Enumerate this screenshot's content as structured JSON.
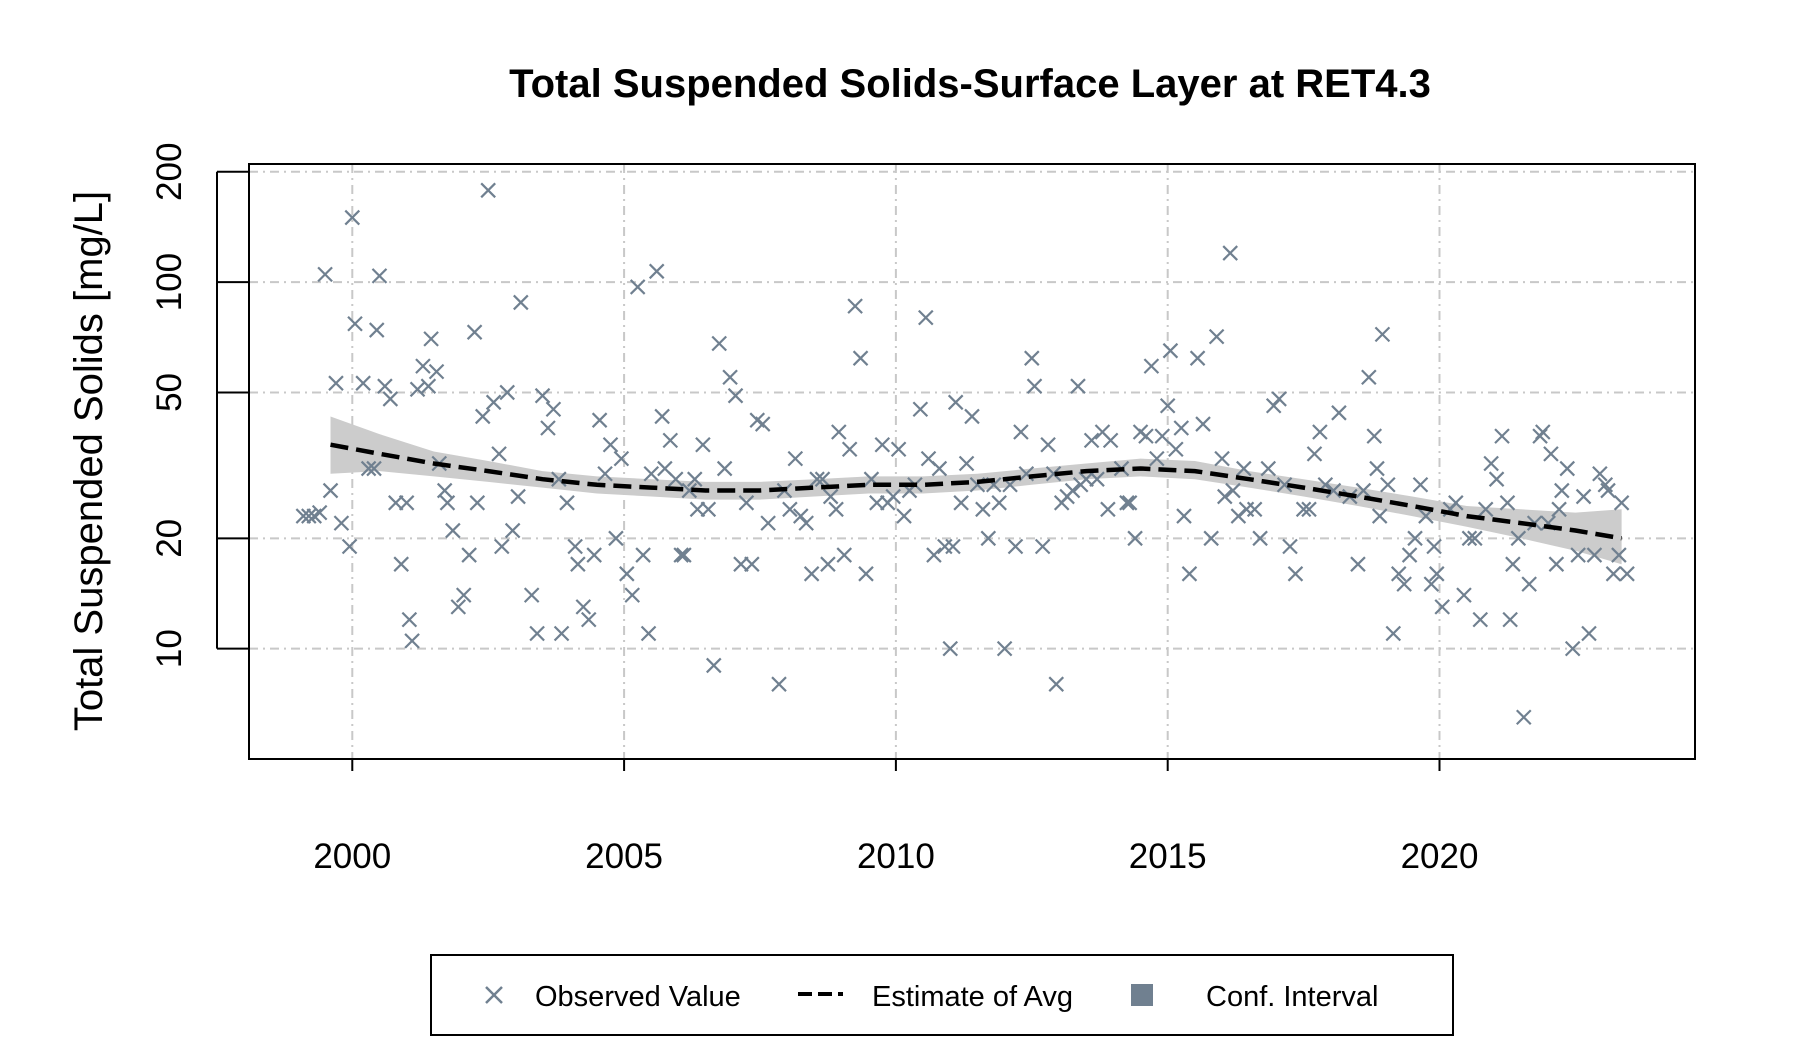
{
  "chart_data": {
    "type": "scatter",
    "title": "Total Suspended Solids-Surface Layer at RET4.3",
    "xlabel": "",
    "ylabel": "Total Suspended Solids [mg/L]",
    "y_scale": "log",
    "xlim": [
      1998.1,
      2024.7
    ],
    "ylim": [
      5,
      210
    ],
    "x_ticks": [
      2000,
      2005,
      2010,
      2015,
      2020
    ],
    "x_tick_labels": [
      "2000",
      "2005",
      "2010",
      "2015",
      "2020"
    ],
    "y_ticks": [
      10,
      20,
      50,
      100,
      200
    ],
    "y_tick_labels": [
      "10",
      "20",
      "50",
      "100",
      "200"
    ],
    "grid": true,
    "legend_position": "bottom",
    "colors": {
      "observed": "#708090",
      "estimate": "#000000",
      "confidence_band": "#cccccc",
      "confidence_legend": "#708090",
      "grid": "#c8c8c8"
    },
    "legend": [
      {
        "label": "Observed Value",
        "symbol": "x-marker"
      },
      {
        "label": "Estimate of Avg",
        "symbol": "dashed-line"
      },
      {
        "label": "Conf. Interval",
        "symbol": "filled-square"
      }
    ],
    "series": [
      {
        "name": "Observed Value",
        "type": "scatter",
        "points": [
          [
            1999.1,
            23
          ],
          [
            1999.2,
            23
          ],
          [
            1999.3,
            23
          ],
          [
            1999.4,
            23.5
          ],
          [
            1999.5,
            105
          ],
          [
            1999.6,
            27
          ],
          [
            1999.7,
            53
          ],
          [
            1999.8,
            22
          ],
          [
            1999.95,
            19
          ],
          [
            2000.0,
            150
          ],
          [
            2000.05,
            77
          ],
          [
            2000.2,
            53
          ],
          [
            2000.3,
            31
          ],
          [
            2000.4,
            31
          ],
          [
            2000.45,
            74
          ],
          [
            2000.5,
            104
          ],
          [
            2000.6,
            52
          ],
          [
            2000.7,
            48
          ],
          [
            2000.8,
            25
          ],
          [
            2000.9,
            17
          ],
          [
            2001.0,
            25
          ],
          [
            2001.05,
            12
          ],
          [
            2001.1,
            10.5
          ],
          [
            2001.2,
            51
          ],
          [
            2001.3,
            59
          ],
          [
            2001.4,
            52
          ],
          [
            2001.45,
            70
          ],
          [
            2001.55,
            57
          ],
          [
            2001.6,
            32
          ],
          [
            2001.7,
            27
          ],
          [
            2001.75,
            25
          ],
          [
            2001.85,
            21
          ],
          [
            2001.95,
            13
          ],
          [
            2002.05,
            14
          ],
          [
            2002.15,
            18
          ],
          [
            2002.25,
            73
          ],
          [
            2002.3,
            25
          ],
          [
            2002.4,
            43
          ],
          [
            2002.5,
            178
          ],
          [
            2002.6,
            47
          ],
          [
            2002.7,
            34
          ],
          [
            2002.75,
            19
          ],
          [
            2002.85,
            50
          ],
          [
            2002.95,
            21
          ],
          [
            2003.05,
            26
          ],
          [
            2003.1,
            88
          ],
          [
            2003.3,
            14
          ],
          [
            2003.4,
            11
          ],
          [
            2003.5,
            49
          ],
          [
            2003.6,
            40
          ],
          [
            2003.7,
            45
          ],
          [
            2003.8,
            29
          ],
          [
            2003.85,
            11
          ],
          [
            2003.95,
            25
          ],
          [
            2004.1,
            19
          ],
          [
            2004.15,
            17
          ],
          [
            2004.25,
            13
          ],
          [
            2004.35,
            12
          ],
          [
            2004.45,
            18
          ],
          [
            2004.55,
            42
          ],
          [
            2004.65,
            30
          ],
          [
            2004.75,
            36
          ],
          [
            2004.85,
            20
          ],
          [
            2004.95,
            33
          ],
          [
            2005.05,
            16
          ],
          [
            2005.15,
            14
          ],
          [
            2005.25,
            97
          ],
          [
            2005.35,
            18
          ],
          [
            2005.45,
            11
          ],
          [
            2005.5,
            30
          ],
          [
            2005.6,
            107
          ],
          [
            2005.7,
            43
          ],
          [
            2005.75,
            31
          ],
          [
            2005.85,
            37
          ],
          [
            2005.95,
            29
          ],
          [
            2006.05,
            18
          ],
          [
            2006.1,
            18
          ],
          [
            2006.2,
            27
          ],
          [
            2006.3,
            29
          ],
          [
            2006.35,
            24
          ],
          [
            2006.45,
            36
          ],
          [
            2006.55,
            24
          ],
          [
            2006.65,
            9
          ],
          [
            2006.75,
            68
          ],
          [
            2006.85,
            31
          ],
          [
            2006.95,
            55
          ],
          [
            2007.05,
            49
          ],
          [
            2007.15,
            17
          ],
          [
            2007.25,
            25
          ],
          [
            2007.35,
            17
          ],
          [
            2007.45,
            42
          ],
          [
            2007.55,
            41
          ],
          [
            2007.65,
            22
          ],
          [
            2007.85,
            8
          ],
          [
            2007.95,
            27
          ],
          [
            2008.05,
            24
          ],
          [
            2008.15,
            33
          ],
          [
            2008.25,
            23
          ],
          [
            2008.35,
            22
          ],
          [
            2008.45,
            16
          ],
          [
            2008.55,
            29
          ],
          [
            2008.65,
            29
          ],
          [
            2008.75,
            17
          ],
          [
            2008.8,
            26
          ],
          [
            2008.9,
            24
          ],
          [
            2008.95,
            39
          ],
          [
            2009.05,
            18
          ],
          [
            2009.15,
            35
          ],
          [
            2009.25,
            86
          ],
          [
            2009.35,
            62
          ],
          [
            2009.45,
            16
          ],
          [
            2009.55,
            29
          ],
          [
            2009.65,
            25
          ],
          [
            2009.75,
            36
          ],
          [
            2009.85,
            25
          ],
          [
            2009.95,
            26
          ],
          [
            2010.05,
            35
          ],
          [
            2010.15,
            23
          ],
          [
            2010.25,
            27
          ],
          [
            2010.35,
            28
          ],
          [
            2010.45,
            45
          ],
          [
            2010.55,
            80
          ],
          [
            2010.6,
            33
          ],
          [
            2010.7,
            18
          ],
          [
            2010.8,
            31
          ],
          [
            2010.9,
            19
          ],
          [
            2011.0,
            10
          ],
          [
            2011.05,
            19
          ],
          [
            2011.1,
            47
          ],
          [
            2011.2,
            25
          ],
          [
            2011.3,
            32
          ],
          [
            2011.4,
            43
          ],
          [
            2011.5,
            28
          ],
          [
            2011.6,
            24
          ],
          [
            2011.7,
            20
          ],
          [
            2011.8,
            28
          ],
          [
            2011.9,
            25
          ],
          [
            2012.0,
            10
          ],
          [
            2012.1,
            28
          ],
          [
            2012.2,
            19
          ],
          [
            2012.3,
            39
          ],
          [
            2012.4,
            30
          ],
          [
            2012.5,
            62
          ],
          [
            2012.55,
            52
          ],
          [
            2012.7,
            19
          ],
          [
            2012.8,
            36
          ],
          [
            2012.9,
            30
          ],
          [
            2012.95,
            8
          ],
          [
            2013.05,
            25
          ],
          [
            2013.15,
            26
          ],
          [
            2013.25,
            27
          ],
          [
            2013.35,
            52
          ],
          [
            2013.4,
            28
          ],
          [
            2013.5,
            29
          ],
          [
            2013.6,
            37
          ],
          [
            2013.7,
            29
          ],
          [
            2013.8,
            39
          ],
          [
            2013.9,
            24
          ],
          [
            2013.95,
            37
          ],
          [
            2014.15,
            31
          ],
          [
            2014.25,
            25
          ],
          [
            2014.3,
            25
          ],
          [
            2014.4,
            20
          ],
          [
            2014.5,
            39
          ],
          [
            2014.6,
            38
          ],
          [
            2014.7,
            59
          ],
          [
            2014.8,
            33
          ],
          [
            2014.9,
            38
          ],
          [
            2015.0,
            46
          ],
          [
            2015.05,
            65
          ],
          [
            2015.15,
            35
          ],
          [
            2015.25,
            40
          ],
          [
            2015.3,
            23
          ],
          [
            2015.4,
            16
          ],
          [
            2015.55,
            62
          ],
          [
            2015.65,
            41
          ],
          [
            2015.8,
            20
          ],
          [
            2015.9,
            71
          ],
          [
            2016.0,
            33
          ],
          [
            2016.05,
            26
          ],
          [
            2016.15,
            120
          ],
          [
            2016.2,
            27
          ],
          [
            2016.3,
            23
          ],
          [
            2016.4,
            31
          ],
          [
            2016.45,
            24
          ],
          [
            2016.6,
            24
          ],
          [
            2016.7,
            20
          ],
          [
            2016.85,
            31
          ],
          [
            2016.95,
            46
          ],
          [
            2017.05,
            48
          ],
          [
            2017.15,
            28
          ],
          [
            2017.25,
            19
          ],
          [
            2017.35,
            16
          ],
          [
            2017.5,
            24
          ],
          [
            2017.6,
            24
          ],
          [
            2017.7,
            34
          ],
          [
            2017.8,
            39
          ],
          [
            2017.9,
            28
          ],
          [
            2018.05,
            27
          ],
          [
            2018.15,
            44
          ],
          [
            2018.35,
            26
          ],
          [
            2018.5,
            17
          ],
          [
            2018.6,
            27
          ],
          [
            2018.7,
            55
          ],
          [
            2018.8,
            38
          ],
          [
            2018.85,
            31
          ],
          [
            2018.9,
            23
          ],
          [
            2018.95,
            72
          ],
          [
            2019.05,
            28
          ],
          [
            2019.15,
            11
          ],
          [
            2019.25,
            16
          ],
          [
            2019.35,
            15
          ],
          [
            2019.45,
            18
          ],
          [
            2019.55,
            20
          ],
          [
            2019.65,
            28
          ],
          [
            2019.75,
            23
          ],
          [
            2019.85,
            15
          ],
          [
            2019.9,
            19
          ],
          [
            2019.95,
            16
          ],
          [
            2020.05,
            13
          ],
          [
            2020.2,
            24
          ],
          [
            2020.3,
            25
          ],
          [
            2020.45,
            14
          ],
          [
            2020.55,
            20
          ],
          [
            2020.65,
            20
          ],
          [
            2020.75,
            12
          ],
          [
            2020.85,
            24
          ],
          [
            2020.95,
            32
          ],
          [
            2021.05,
            29
          ],
          [
            2021.15,
            38
          ],
          [
            2021.25,
            25
          ],
          [
            2021.3,
            12
          ],
          [
            2021.35,
            17
          ],
          [
            2021.45,
            20
          ],
          [
            2021.55,
            6.5
          ],
          [
            2021.65,
            15
          ],
          [
            2021.75,
            22
          ],
          [
            2021.85,
            38
          ],
          [
            2021.9,
            39
          ],
          [
            2022.0,
            22
          ],
          [
            2022.05,
            34
          ],
          [
            2022.15,
            17
          ],
          [
            2022.2,
            24
          ],
          [
            2022.25,
            27
          ],
          [
            2022.35,
            31
          ],
          [
            2022.45,
            10
          ],
          [
            2022.55,
            18
          ],
          [
            2022.65,
            26
          ],
          [
            2022.75,
            11
          ],
          [
            2022.85,
            18
          ],
          [
            2022.95,
            30
          ],
          [
            2023.05,
            28
          ],
          [
            2023.1,
            27
          ],
          [
            2023.2,
            16
          ],
          [
            2023.3,
            18
          ],
          [
            2023.35,
            25
          ],
          [
            2023.45,
            16
          ]
        ]
      },
      {
        "name": "Estimate of Avg",
        "type": "line",
        "x": [
          1999.6,
          2000.5,
          2001.5,
          2002.5,
          2003.5,
          2004.5,
          2005.5,
          2006.5,
          2007.5,
          2008.5,
          2009.5,
          2010.5,
          2011.5,
          2012.5,
          2013.5,
          2014.5,
          2015.5,
          2016.5,
          2017.5,
          2018.5,
          2019.5,
          2020.5,
          2021.5,
          2022.5,
          2023.35
        ],
        "y": [
          36,
          34,
          32,
          30.5,
          29,
          28,
          27.5,
          27,
          27,
          27.5,
          28,
          28,
          28.5,
          29.5,
          30.5,
          31,
          30.5,
          29,
          27.5,
          26,
          24.5,
          23,
          22,
          21,
          20
        ]
      },
      {
        "name": "Conf. Interval",
        "type": "area",
        "x": [
          1999.6,
          2000.5,
          2001.5,
          2002.5,
          2003.5,
          2004.5,
          2005.5,
          2006.5,
          2007.5,
          2008.5,
          2009.5,
          2010.5,
          2011.5,
          2012.5,
          2013.5,
          2014.5,
          2015.5,
          2016.5,
          2017.5,
          2018.5,
          2019.5,
          2020.5,
          2021.5,
          2022.5,
          2023.35
        ],
        "lower": [
          30,
          30.5,
          29.5,
          28.5,
          27.5,
          26.5,
          26,
          25.5,
          25.5,
          26,
          26.5,
          26.5,
          27,
          28,
          29,
          29.5,
          29,
          27.5,
          26,
          24.5,
          23,
          21.5,
          20,
          18.5,
          17
        ],
        "upper": [
          43,
          38.5,
          34.5,
          32.5,
          30.5,
          29.5,
          29,
          28.5,
          28.5,
          29,
          29.5,
          29.5,
          30,
          31,
          32,
          33,
          32.5,
          30.5,
          29,
          27.5,
          26,
          24.5,
          24,
          23.5,
          24
        ]
      }
    ]
  }
}
